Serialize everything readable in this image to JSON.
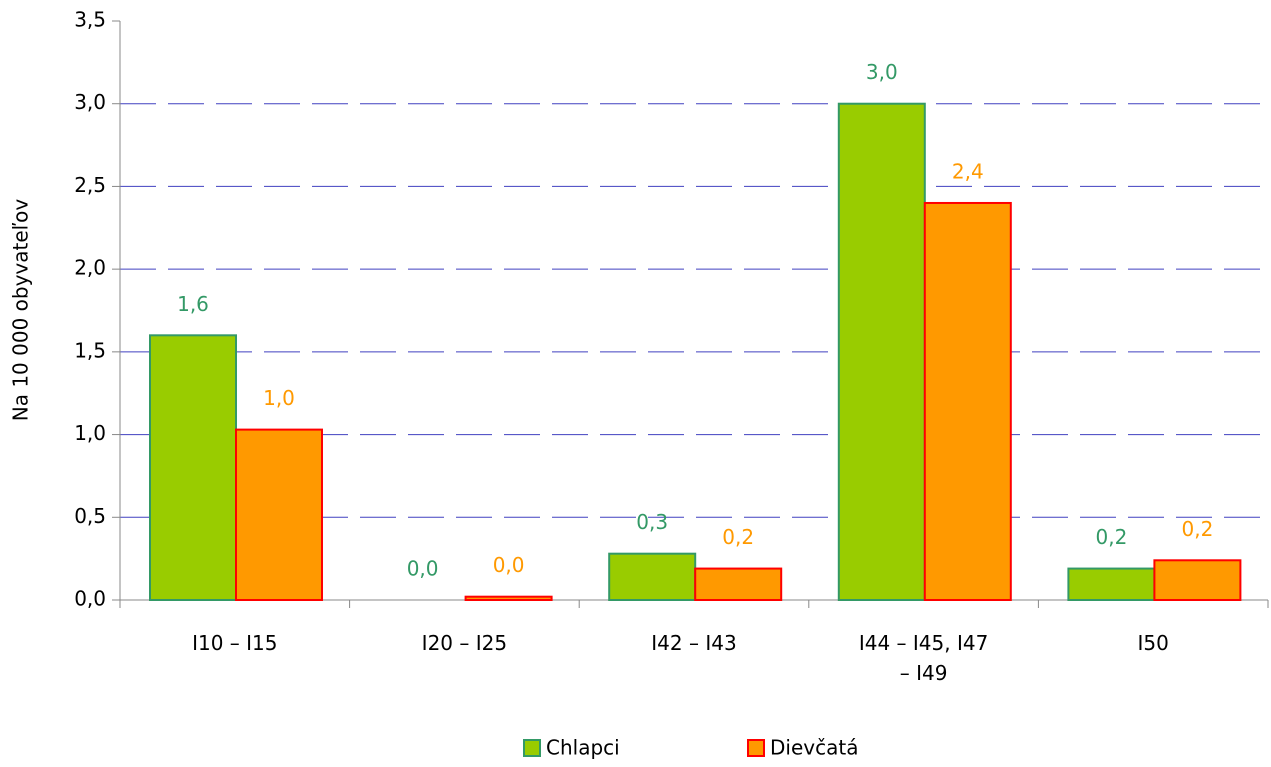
{
  "chart_data": {
    "type": "bar",
    "y_label": "Na 10 000 obyvateľov",
    "categories": [
      "I10 – I15",
      "I20 – I25",
      "I42 – I43",
      "I44 – I45, I47 – I49",
      "I50"
    ],
    "series": [
      {
        "name": "Chlapci",
        "color": "#99cc00",
        "edge": "#339966",
        "label_color": "#339966",
        "values": [
          1.6,
          0,
          0.28,
          3.0,
          0.19
        ],
        "value_labels": [
          "1,6",
          "0,0",
          "0,3",
          "3,0",
          "0,2"
        ]
      },
      {
        "name": "Dievčatá",
        "color": "#ff9900",
        "edge": "#ff0000",
        "label_color": "#ff9900",
        "values": [
          1.03,
          0.02,
          0.19,
          2.4,
          0.24
        ],
        "value_labels": [
          "1,0",
          "0,0",
          "0,2",
          "2,4",
          "0,2"
        ]
      }
    ],
    "ylim": [
      0,
      3.5
    ],
    "yticks": [
      {
        "value": 0,
        "label": "0,0"
      },
      {
        "value": 0.5,
        "label": "0,5"
      },
      {
        "value": 1,
        "label": "1,0"
      },
      {
        "value": 1.5,
        "label": "1,5"
      },
      {
        "value": 2,
        "label": "2,0"
      },
      {
        "value": 2.5,
        "label": "2,5"
      },
      {
        "value": 3,
        "label": "3,0"
      },
      {
        "value": 3.5,
        "label": "3,5"
      }
    ],
    "grid": true,
    "legend": "bottom"
  }
}
